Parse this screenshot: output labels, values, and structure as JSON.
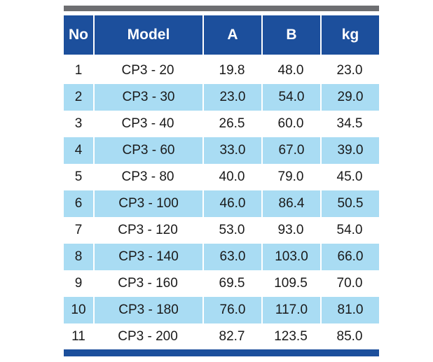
{
  "table": {
    "headers": [
      "No",
      "Model",
      "A",
      "B",
      "kg"
    ],
    "rows": [
      [
        "1",
        "CP3 - 20",
        "19.8",
        "48.0",
        "23.0"
      ],
      [
        "2",
        "CP3 - 30",
        "23.0",
        "54.0",
        "29.0"
      ],
      [
        "3",
        "CP3 - 40",
        "26.5",
        "60.0",
        "34.5"
      ],
      [
        "4",
        "CP3 - 60",
        "33.0",
        "67.0",
        "39.0"
      ],
      [
        "5",
        "CP3 - 80",
        "40.0",
        "79.0",
        "45.0"
      ],
      [
        "6",
        "CP3 - 100",
        "46.0",
        "86.4",
        "50.5"
      ],
      [
        "7",
        "CP3 - 120",
        "53.0",
        "93.0",
        "54.0"
      ],
      [
        "8",
        "CP3 - 140",
        "63.0",
        "103.0",
        "66.0"
      ],
      [
        "9",
        "CP3 - 160",
        "69.5",
        "109.5",
        "70.0"
      ],
      [
        "10",
        "CP3 - 180",
        "76.0",
        "117.0",
        "81.0"
      ],
      [
        "11",
        "CP3 - 200",
        "82.7",
        "123.5",
        "85.0"
      ]
    ]
  },
  "colors": {
    "header_bg": "#1c4f9c",
    "stripe_bg": "#a9dcf3",
    "top_bar": "#6d6e71",
    "bottom_bar": "#1c4f9c"
  }
}
